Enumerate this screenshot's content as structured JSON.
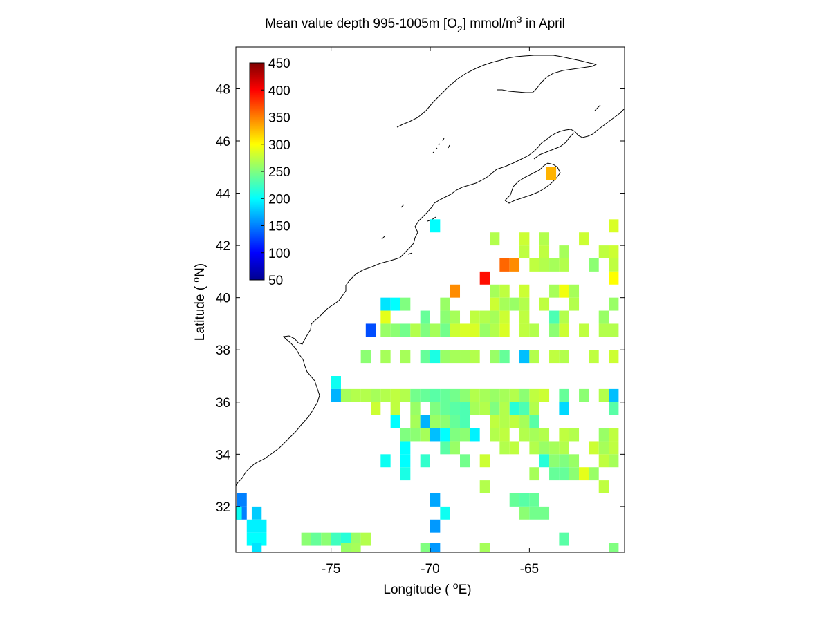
{
  "chart_data": {
    "type": "heatmap",
    "title": {
      "prefix": "Mean value depth 995-1005m [O",
      "sub": "2",
      "middle": "] mmol/m",
      "sup": "3",
      "suffix": " in April"
    },
    "xlabel": {
      "before": "Longitude ( ",
      "deg": "o",
      "after": "E)"
    },
    "ylabel": {
      "before": "Latitude ( ",
      "deg": "o",
      "after": "N)"
    },
    "xlim": [
      -79.8,
      -60.2
    ],
    "ylim": [
      30.25,
      49.6
    ],
    "xticks": [
      -75,
      -70,
      -65
    ],
    "xtick_labels": [
      "-75",
      "-70",
      "-65"
    ],
    "yticks": [
      32,
      34,
      36,
      38,
      40,
      42,
      44,
      46,
      48
    ],
    "ytick_labels": [
      "32",
      "34",
      "36",
      "38",
      "40",
      "42",
      "44",
      "46",
      "48"
    ],
    "colorbar": {
      "min": 50,
      "max": 450,
      "colormap": "jet",
      "location": "top-left",
      "ticks": [
        450,
        400,
        350,
        300,
        250,
        200,
        150,
        100,
        50
      ],
      "tick_labels": [
        "450",
        "400",
        "350",
        "300",
        "250",
        "200",
        "150",
        "100",
        "50"
      ]
    },
    "cell_size_deg": 0.5,
    "cells": [
      [
        -79.5,
        32.25,
        150
      ],
      [
        -79.5,
        31.75,
        150
      ],
      [
        -79.75,
        31.75,
        205
      ],
      [
        -78.75,
        31.75,
        180
      ],
      [
        -79,
        31.25,
        195
      ],
      [
        -78.5,
        31.25,
        195
      ],
      [
        -78.5,
        30.75,
        200
      ],
      [
        -79,
        30.75,
        200
      ],
      [
        -78.75,
        30.35,
        190
      ],
      [
        -76.25,
        30.75,
        255
      ],
      [
        -75.75,
        30.75,
        240
      ],
      [
        -75.25,
        30.75,
        255
      ],
      [
        -74.75,
        30.75,
        225
      ],
      [
        -74.25,
        30.75,
        215
      ],
      [
        -73.75,
        30.75,
        260
      ],
      [
        -73.25,
        30.75,
        270
      ],
      [
        -74.25,
        30.35,
        260
      ],
      [
        -73.75,
        30.35,
        265
      ],
      [
        -69.75,
        42.75,
        200
      ],
      [
        -72.25,
        39.75,
        190
      ],
      [
        -71.75,
        39.75,
        200
      ],
      [
        -71.25,
        39.75,
        250
      ],
      [
        -72.25,
        39.25,
        290
      ],
      [
        -73,
        38.75,
        130
      ],
      [
        -72.25,
        38.75,
        260
      ],
      [
        -71.75,
        38.75,
        255
      ],
      [
        -71.25,
        38.75,
        245
      ],
      [
        -70.75,
        38.75,
        270
      ],
      [
        -70.25,
        38.75,
        250
      ],
      [
        -69.75,
        38.75,
        265
      ],
      [
        -69.25,
        38.75,
        245
      ],
      [
        -68.75,
        38.75,
        280
      ],
      [
        -68.25,
        38.75,
        285
      ],
      [
        -67.75,
        38.75,
        285
      ],
      [
        -67.25,
        38.75,
        260
      ],
      [
        -66.75,
        38.75,
        270
      ],
      [
        -66.25,
        38.75,
        285
      ],
      [
        -65.25,
        38.75,
        275
      ],
      [
        -64.75,
        38.75,
        270
      ],
      [
        -63.75,
        38.75,
        255
      ],
      [
        -63.25,
        38.75,
        280
      ],
      [
        -62.25,
        38.75,
        275
      ],
      [
        -61.25,
        38.75,
        270
      ],
      [
        -60.75,
        38.75,
        270
      ],
      [
        -73.25,
        37.75,
        255
      ],
      [
        -72.25,
        37.75,
        265
      ],
      [
        -71.25,
        37.75,
        265
      ],
      [
        -70.25,
        37.75,
        240
      ],
      [
        -69.75,
        37.75,
        210
      ],
      [
        -69.25,
        37.75,
        260
      ],
      [
        -68.75,
        37.75,
        265
      ],
      [
        -68.25,
        37.75,
        265
      ],
      [
        -67.75,
        37.75,
        270
      ],
      [
        -66.75,
        37.75,
        260
      ],
      [
        -66.25,
        37.75,
        240
      ],
      [
        -65.25,
        37.75,
        175
      ],
      [
        -64.75,
        37.75,
        270
      ],
      [
        -63.75,
        37.75,
        275
      ],
      [
        -63.25,
        37.75,
        270
      ],
      [
        -61.75,
        37.75,
        275
      ],
      [
        -60.75,
        37.75,
        280
      ],
      [
        -74.75,
        36.75,
        205
      ],
      [
        -74.75,
        36.25,
        170
      ],
      [
        -74.25,
        36.25,
        265
      ],
      [
        -73.75,
        36.25,
        270
      ],
      [
        -73.25,
        36.25,
        270
      ],
      [
        -72.75,
        36.25,
        265
      ],
      [
        -72.25,
        36.25,
        270
      ],
      [
        -71.75,
        36.25,
        275
      ],
      [
        -71.25,
        36.25,
        270
      ],
      [
        -70.75,
        36.25,
        245
      ],
      [
        -70.25,
        36.25,
        240
      ],
      [
        -69.75,
        36.25,
        235
      ],
      [
        -69.25,
        36.25,
        240
      ],
      [
        -68.75,
        36.25,
        245
      ],
      [
        -68.25,
        36.25,
        255
      ],
      [
        -67.75,
        36.25,
        270
      ],
      [
        -67.25,
        36.25,
        265
      ],
      [
        -66.75,
        36.25,
        260
      ],
      [
        -66.25,
        36.25,
        265
      ],
      [
        -65.75,
        36.25,
        270
      ],
      [
        -65.25,
        36.25,
        255
      ],
      [
        -64.75,
        36.25,
        275
      ],
      [
        -64.25,
        36.25,
        280
      ],
      [
        -63.25,
        36.25,
        240
      ],
      [
        -62.25,
        36.25,
        255
      ],
      [
        -61.25,
        36.25,
        270
      ],
      [
        -60.75,
        36.25,
        175
      ],
      [
        -72.75,
        35.75,
        280
      ],
      [
        -71.75,
        35.75,
        275
      ],
      [
        -70.75,
        35.75,
        260
      ],
      [
        -69.75,
        35.75,
        250
      ],
      [
        -69.25,
        35.75,
        240
      ],
      [
        -68.75,
        35.75,
        235
      ],
      [
        -68.25,
        35.75,
        230
      ],
      [
        -67.75,
        35.75,
        265
      ],
      [
        -67.25,
        35.75,
        270
      ],
      [
        -66.75,
        35.75,
        250
      ],
      [
        -66.25,
        35.75,
        270
      ],
      [
        -65.75,
        35.75,
        215
      ],
      [
        -65.25,
        35.75,
        230
      ],
      [
        -64.75,
        35.75,
        270
      ],
      [
        -63.25,
        35.75,
        185
      ],
      [
        -60.75,
        35.75,
        235
      ],
      [
        -71.75,
        35.25,
        200
      ],
      [
        -70.75,
        35.25,
        265
      ],
      [
        -70.25,
        35.25,
        170
      ],
      [
        -69.75,
        35.25,
        260
      ],
      [
        -69.25,
        35.25,
        255
      ],
      [
        -68.75,
        35.25,
        240
      ],
      [
        -68.25,
        35.25,
        230
      ],
      [
        -66.75,
        35.25,
        275
      ],
      [
        -66.25,
        35.25,
        270
      ],
      [
        -65.75,
        35.25,
        275
      ],
      [
        -65.25,
        35.25,
        265
      ],
      [
        -64.75,
        35.25,
        235
      ],
      [
        -71.25,
        34.75,
        250
      ],
      [
        -70.75,
        34.75,
        255
      ],
      [
        -70.25,
        34.75,
        265
      ],
      [
        -69.75,
        34.75,
        175
      ],
      [
        -69.25,
        34.75,
        200
      ],
      [
        -68.75,
        34.75,
        250
      ],
      [
        -68.25,
        34.75,
        255
      ],
      [
        -67.75,
        34.75,
        195
      ],
      [
        -66.75,
        34.75,
        270
      ],
      [
        -66.25,
        34.75,
        275
      ],
      [
        -65.25,
        34.75,
        270
      ],
      [
        -64.75,
        34.75,
        265
      ],
      [
        -64.25,
        34.75,
        270
      ],
      [
        -63.25,
        34.75,
        275
      ],
      [
        -62.75,
        34.75,
        270
      ],
      [
        -61.25,
        34.75,
        260
      ],
      [
        -60.75,
        34.75,
        275
      ],
      [
        -71.25,
        34.25,
        200
      ],
      [
        -69.25,
        34.25,
        235
      ],
      [
        -68.75,
        34.25,
        260
      ],
      [
        -66.25,
        34.25,
        270
      ],
      [
        -65.75,
        34.25,
        275
      ],
      [
        -64.75,
        34.25,
        270
      ],
      [
        -64.25,
        34.25,
        260
      ],
      [
        -63.75,
        34.25,
        265
      ],
      [
        -63.25,
        34.25,
        270
      ],
      [
        -61.75,
        34.25,
        280
      ],
      [
        -61.25,
        34.25,
        265
      ],
      [
        -60.75,
        34.25,
        275
      ],
      [
        -72.25,
        33.75,
        205
      ],
      [
        -71.25,
        33.75,
        200
      ],
      [
        -70.25,
        33.75,
        220
      ],
      [
        -68.25,
        33.75,
        245
      ],
      [
        -67.25,
        33.75,
        280
      ],
      [
        -64.25,
        33.75,
        215
      ],
      [
        -63.75,
        33.75,
        255
      ],
      [
        -63.25,
        33.75,
        250
      ],
      [
        -62.75,
        33.75,
        260
      ],
      [
        -61.25,
        33.75,
        275
      ],
      [
        -60.75,
        33.75,
        265
      ],
      [
        -71.25,
        33.25,
        210
      ],
      [
        -64.75,
        33.25,
        265
      ],
      [
        -63.75,
        33.25,
        240
      ],
      [
        -63.25,
        33.25,
        240
      ],
      [
        -62.75,
        33.25,
        255
      ],
      [
        -62.25,
        33.25,
        290
      ],
      [
        -61.75,
        33.25,
        260
      ],
      [
        -67.25,
        32.75,
        270
      ],
      [
        -61.25,
        32.75,
        275
      ],
      [
        -69.75,
        32.25,
        165
      ],
      [
        -65.75,
        32.25,
        240
      ],
      [
        -64.75,
        32.25,
        240
      ],
      [
        -65.25,
        32.25,
        235
      ],
      [
        -69.25,
        31.75,
        205
      ],
      [
        -65.25,
        31.75,
        255
      ],
      [
        -64.75,
        31.75,
        245
      ],
      [
        -64.25,
        31.75,
        245
      ],
      [
        -69.75,
        31.25,
        160
      ],
      [
        -63.25,
        30.75,
        235
      ],
      [
        -70.25,
        30.35,
        250
      ],
      [
        -69.75,
        30.35,
        160
      ],
      [
        -67.25,
        30.35,
        265
      ],
      [
        -60.75,
        30.35,
        250
      ],
      [
        -68.75,
        40.25,
        345
      ],
      [
        -67.25,
        40.75,
        395
      ],
      [
        -66.25,
        41.25,
        360
      ],
      [
        -65.75,
        41.25,
        345
      ],
      [
        -66.75,
        42.25,
        270
      ],
      [
        -65.25,
        42.25,
        280
      ],
      [
        -64.25,
        42.25,
        270
      ],
      [
        -62.25,
        42.25,
        280
      ],
      [
        -60.75,
        42.75,
        285
      ],
      [
        -65.25,
        41.75,
        275
      ],
      [
        -64.25,
        41.75,
        275
      ],
      [
        -63.25,
        41.75,
        265
      ],
      [
        -61.25,
        41.75,
        275
      ],
      [
        -60.75,
        41.75,
        280
      ],
      [
        -64.75,
        41.25,
        275
      ],
      [
        -64.25,
        41.25,
        270
      ],
      [
        -63.75,
        41.25,
        265
      ],
      [
        -63.25,
        41.25,
        270
      ],
      [
        -61.75,
        41.25,
        255
      ],
      [
        -60.75,
        41.25,
        275
      ],
      [
        -66.75,
        40.25,
        265
      ],
      [
        -66.25,
        40.25,
        275
      ],
      [
        -65.25,
        40.25,
        280
      ],
      [
        -63.75,
        40.25,
        265
      ],
      [
        -63.25,
        40.25,
        295
      ],
      [
        -62.75,
        40.25,
        265
      ],
      [
        -60.75,
        40.75,
        300
      ],
      [
        -66.75,
        39.75,
        280
      ],
      [
        -66.25,
        39.75,
        265
      ],
      [
        -65.75,
        39.75,
        260
      ],
      [
        -65.25,
        39.75,
        270
      ],
      [
        -64.25,
        39.75,
        275
      ],
      [
        -62.75,
        39.75,
        270
      ],
      [
        -60.75,
        39.75,
        260
      ],
      [
        -68.75,
        39.25,
        265
      ],
      [
        -67.75,
        39.25,
        275
      ],
      [
        -67.25,
        39.25,
        270
      ],
      [
        -66.75,
        39.25,
        265
      ],
      [
        -66.25,
        39.25,
        280
      ],
      [
        -65.25,
        39.25,
        275
      ],
      [
        -63.75,
        39.25,
        230
      ],
      [
        -63.25,
        39.25,
        270
      ],
      [
        -61.25,
        39.25,
        260
      ],
      [
        -70.25,
        39.25,
        240
      ],
      [
        -69.25,
        39.75,
        260
      ],
      [
        -69.25,
        39.25,
        255
      ],
      [
        -63.9,
        44.75,
        330
      ]
    ]
  }
}
